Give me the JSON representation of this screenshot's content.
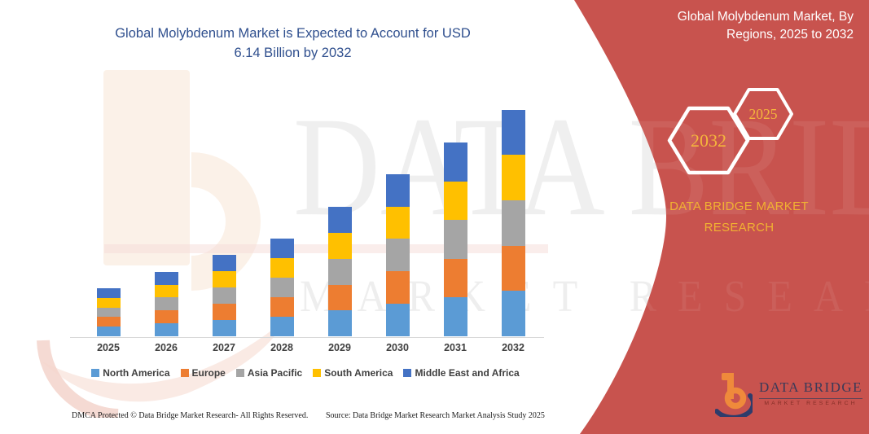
{
  "title": {
    "line1": "Global Molybdenum Market is Expected to Account for USD",
    "line2": "6.14 Billion by 2032"
  },
  "panel": {
    "title": "Global Molybdenum Market, By Regions, 2025 to 2032",
    "hexagons": [
      {
        "label": "2032"
      },
      {
        "label": "2025"
      }
    ],
    "brand_line1": "DATA BRIDGE MARKET",
    "brand_line2": "RESEARCH",
    "logo_name": "DATA BRIDGE",
    "logo_sub": "MARKET RESEARCH",
    "background_color": "#C8534E",
    "accent_gold": "#F1B232"
  },
  "watermark": {
    "line1": "DATA BRIDGE",
    "line2": "MARKET RESEARCH"
  },
  "chart_data": {
    "type": "bar",
    "stacked": true,
    "title": "Global Molybdenum Market is Expected to Account for USD 6.14 Billion by 2032",
    "unit": "USD Billion",
    "categories": [
      "2025",
      "2026",
      "2027",
      "2028",
      "2029",
      "2030",
      "2031",
      "2032"
    ],
    "series": [
      {
        "name": "North America",
        "color": "#5B9BD5",
        "values": [
          0.26,
          0.35,
          0.44,
          0.53,
          0.7,
          0.88,
          1.05,
          1.228
        ]
      },
      {
        "name": "Europe",
        "color": "#ED7D31",
        "values": [
          0.26,
          0.35,
          0.44,
          0.53,
          0.7,
          0.88,
          1.05,
          1.228
        ]
      },
      {
        "name": "Asia Pacific",
        "color": "#A5A5A5",
        "values": [
          0.26,
          0.35,
          0.44,
          0.53,
          0.7,
          0.88,
          1.05,
          1.228
        ]
      },
      {
        "name": "South America",
        "color": "#FFC000",
        "values": [
          0.26,
          0.35,
          0.44,
          0.53,
          0.7,
          0.88,
          1.05,
          1.228
        ]
      },
      {
        "name": "Middle East and Africa",
        "color": "#4472C4",
        "values": [
          0.26,
          0.35,
          0.44,
          0.53,
          0.7,
          0.88,
          1.05,
          1.228
        ]
      }
    ],
    "totals": [
      1.3,
      1.75,
      2.2,
      2.65,
      3.5,
      4.4,
      5.25,
      6.14
    ],
    "ylim": [
      0,
      6.5
    ],
    "gridlines": false,
    "legend_position": "bottom"
  },
  "footer": {
    "dmca": "DMCA Protected © Data Bridge Market Research-  All Rights Reserved.",
    "source": "Source: Data Bridge Market Research  Market Analysis Study 2025"
  }
}
